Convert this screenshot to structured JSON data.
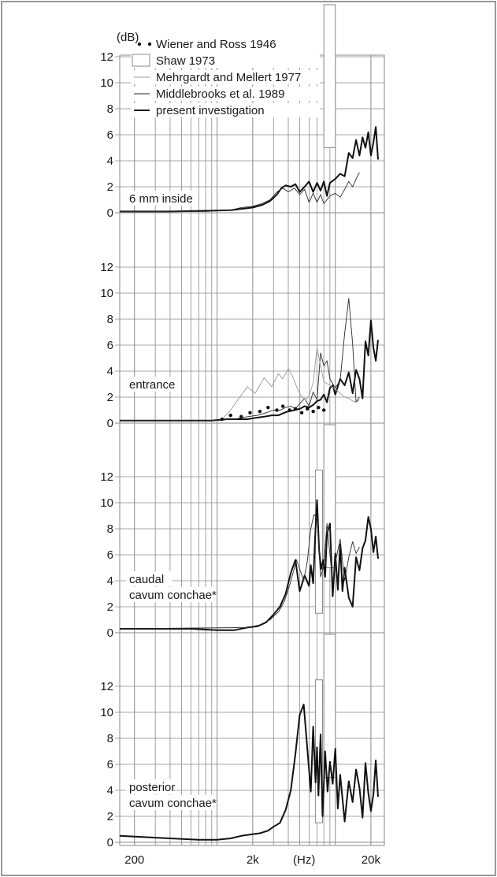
{
  "colors": {
    "background": "#ffffff",
    "frame": "#555555",
    "grid": "#8a8a8a",
    "present": "#111111",
    "middlebrooks": "#2a2a2a",
    "mehrgardt": "#9a9a9a",
    "wiener": "#111111",
    "shaw": "#8a8a8a"
  },
  "chart_data": {
    "type": "line",
    "x_scale": "log",
    "xlim": [
      150,
      26000
    ],
    "x_ticks": [
      {
        "value": 200,
        "label": "200"
      },
      {
        "value": 2000,
        "label": "2k"
      },
      {
        "value": 20000,
        "label": "20k"
      }
    ],
    "xlabel": "(Hz)",
    "ylabel": "(dB)",
    "y_ticks": [
      0,
      2,
      4,
      6,
      8,
      10,
      12
    ],
    "legend": [
      {
        "key": "wiener",
        "label": "Wiener and Ross 1946",
        "marker": "dots"
      },
      {
        "key": "shaw",
        "label": "Shaw 1973",
        "marker": "box"
      },
      {
        "key": "mehrgardt",
        "label": "Mehrgardt and Mellert 1977",
        "marker": "thin-light-line"
      },
      {
        "key": "middlebrooks",
        "label": "Middlebrooks et al. 1989",
        "marker": "thin-line"
      },
      {
        "key": "present",
        "label": "present investigation",
        "marker": "thick-line"
      }
    ],
    "panels": [
      {
        "label": "6 mm inside",
        "ylim": [
          0,
          12
        ],
        "series": [
          {
            "key": "present",
            "x": [
              150,
              400,
              800,
              1300,
              1600,
              2000,
              2400,
              2800,
              3200,
              3500,
              3800,
              4200,
              4600,
              5000,
              5500,
              6000,
              6500,
              7000,
              7500,
              8000,
              8500,
              9000,
              10000,
              11000,
              12000,
              13000,
              14000,
              15000,
              16000,
              17000,
              18000,
              19000,
              20000,
              21000,
              22000,
              23000
            ],
            "y": [
              0.1,
              0.1,
              0.15,
              0.2,
              0.3,
              0.4,
              0.6,
              0.9,
              1.4,
              1.9,
              2.1,
              2.0,
              2.2,
              1.6,
              2.0,
              2.4,
              1.6,
              2.3,
              1.7,
              2.4,
              1.3,
              2.3,
              2.6,
              3.0,
              2.8,
              4.6,
              4.2,
              5.6,
              4.4,
              5.8,
              5.0,
              6.2,
              4.4,
              5.4,
              6.6,
              4.1
            ]
          },
          {
            "key": "middlebrooks",
            "x": [
              150,
              800,
              1300,
              1600,
              2000,
              2400,
              2800,
              3200,
              3600,
              4000,
              4500,
              5000,
              5500,
              6000,
              6500,
              7000,
              7500,
              8000,
              9000,
              10000,
              11000,
              12000,
              13000,
              14000,
              15000,
              16000
            ],
            "y": [
              0.1,
              0.1,
              0.2,
              0.4,
              0.5,
              0.7,
              1.0,
              1.6,
              1.9,
              1.6,
              1.9,
              1.4,
              1.8,
              0.8,
              1.5,
              0.8,
              1.4,
              0.7,
              1.3,
              1.5,
              1.2,
              1.8,
              2.4,
              2.0,
              2.6,
              3.1
            ]
          }
        ]
      },
      {
        "label": "entrance",
        "ylim": [
          0,
          12
        ],
        "series": [
          {
            "key": "present",
            "x": [
              150,
              500,
              900,
              1200,
              1500,
              1800,
              2100,
              2500,
              2900,
              3300,
              3700,
              4000,
              4500,
              5000,
              5500,
              6000,
              6500,
              7000,
              7500,
              8000,
              8500,
              9000,
              9500,
              10000,
              11000,
              12000,
              13000,
              14000,
              15000,
              16000,
              17000,
              18000,
              19000,
              20000,
              21000,
              22000,
              23000
            ],
            "y": [
              0.2,
              0.2,
              0.2,
              0.3,
              0.3,
              0.3,
              0.4,
              0.5,
              0.6,
              0.6,
              0.8,
              0.9,
              1.0,
              1.1,
              1.3,
              1.2,
              1.4,
              1.7,
              1.8,
              2.2,
              1.6,
              2.7,
              2.9,
              2.2,
              3.4,
              2.9,
              3.9,
              2.3,
              4.1,
              3.4,
              1.9,
              6.3,
              5.2,
              7.9,
              5.8,
              4.8,
              6.4
            ]
          },
          {
            "key": "middlebrooks",
            "x": [
              150,
              900,
              1400,
              1800,
              2200,
              2600,
              3000,
              3400,
              3800,
              4200,
              4600,
              5000,
              5500,
              6000,
              6500,
              7000,
              7500,
              8000,
              8500,
              9000,
              10000,
              11000,
              12000,
              13000,
              14000,
              15000,
              16000
            ],
            "y": [
              0.2,
              0.2,
              0.3,
              0.5,
              0.6,
              0.8,
              1.0,
              1.0,
              1.2,
              1.3,
              1.1,
              1.5,
              1.9,
              1.3,
              2.4,
              1.8,
              5.4,
              4.4,
              4.8,
              3.4,
              2.7,
              3.3,
              6.9,
              9.6,
              6.1,
              1.6,
              2.0
            ]
          },
          {
            "key": "mehrgardt",
            "x": [
              1100,
              1300,
              1500,
              1800,
              2100,
              2500,
              2900,
              3300,
              3600,
              4000,
              4400,
              4800,
              5200,
              5600,
              6000,
              6500,
              7000,
              7500,
              8000,
              9000,
              10000,
              11000,
              12000,
              13000,
              14000,
              15000,
              16000
            ],
            "y": [
              0.3,
              1.0,
              1.8,
              2.8,
              2.3,
              3.5,
              2.8,
              3.8,
              3.4,
              4.2,
              3.5,
              2.6,
              2.0,
              1.8,
              2.1,
              3.1,
              5.8,
              4.4,
              3.2,
              2.9,
              2.6,
              2.3,
              2.0,
              1.9,
              1.7,
              1.6,
              1.8
            ]
          },
          {
            "key": "wiener",
            "x": [
              1100,
              1300,
              1600,
              1900,
              2300,
              2700,
              3200,
              3600,
              4100,
              4600,
              5200,
              5800,
              6500,
              7200,
              8000
            ],
            "y": [
              0.3,
              0.6,
              0.5,
              0.8,
              0.9,
              1.2,
              1.0,
              1.3,
              1.0,
              1.1,
              0.8,
              1.1,
              0.9,
              1.2,
              1.0
            ]
          }
        ]
      },
      {
        "label_lines": [
          "caudal",
          "cavum conchae*"
        ],
        "ylim": [
          0,
          12
        ],
        "series": [
          {
            "key": "present",
            "x": [
              150,
              600,
              1000,
              1400,
              1800,
              2200,
              2600,
              3000,
              3400,
              3800,
              4200,
              4600,
              5000,
              5500,
              6000,
              6200,
              6500,
              6800,
              7000,
              7300,
              7600,
              7900,
              8200,
              8500,
              9000,
              9500,
              10000,
              10500,
              11000,
              11500,
              12000,
              13000,
              14000,
              15000,
              16000,
              17000,
              18000,
              19000,
              20000,
              21000,
              22000,
              23000
            ],
            "y": [
              0.3,
              0.3,
              0.2,
              0.2,
              0.4,
              0.5,
              0.8,
              1.4,
              2.0,
              3.0,
              4.6,
              5.6,
              3.2,
              4.4,
              3.6,
              5.2,
              3.8,
              8.0,
              10.2,
              6.3,
              4.9,
              5.6,
              4.3,
              7.6,
              8.4,
              2.8,
              6.1,
              3.3,
              6.8,
              3.2,
              5.0,
              2.7,
              2.0,
              5.8,
              4.8,
              6.5,
              7.1,
              8.9,
              8.0,
              6.2,
              7.4,
              5.7
            ]
          },
          {
            "key": "middlebrooks",
            "x": [
              150,
              1800,
              2300,
              2800,
              3300,
              3700,
              4000,
              4300,
              4700,
              5000,
              5400,
              5800,
              6200,
              6600,
              7000,
              7500,
              8000,
              8500,
              9000,
              9500,
              10000,
              11000,
              12000,
              13000,
              14000,
              15000,
              16000
            ],
            "y": [
              0.3,
              0.4,
              0.6,
              1.0,
              1.6,
              2.4,
              3.3,
              4.3,
              5.6,
              4.9,
              4.0,
              5.5,
              8.0,
              9.1,
              8.8,
              4.3,
              5.2,
              8.4,
              6.0,
              3.9,
              5.4,
              7.2,
              4.0,
              5.8,
              7.0,
              6.1,
              6.6
            ]
          }
        ],
        "shaw_boxes": [
          {
            "x0": 6800,
            "x1": 7800,
            "y0": 1.5,
            "y1": 12.5
          },
          {
            "x0": 8000,
            "x1": 10000,
            "y0": 5.0,
            "y1": 16.0
          }
        ]
      },
      {
        "label_lines": [
          "posterior",
          "cavum conchae*"
        ],
        "ylim": [
          0,
          12
        ],
        "series": [
          {
            "key": "present",
            "x": [
              150,
              400,
              700,
              1000,
              1300,
              1600,
              1900,
              2300,
              2700,
              3000,
              3400,
              3800,
              4200,
              4600,
              5000,
              5400,
              5800,
              6200,
              6500,
              6800,
              7000,
              7200,
              7500,
              7800,
              8200,
              8600,
              9000,
              9500,
              10000,
              10500,
              11000,
              12000,
              13000,
              14000,
              15000,
              16000,
              17000,
              18000,
              19000,
              20000,
              21000,
              22000,
              23000
            ],
            "y": [
              0.5,
              0.3,
              0.2,
              0.2,
              0.3,
              0.5,
              0.6,
              0.7,
              0.9,
              1.2,
              1.5,
              2.5,
              4.0,
              6.8,
              9.8,
              10.6,
              7.2,
              3.9,
              8.9,
              4.6,
              7.3,
              3.6,
              8.3,
              2.0,
              7.0,
              3.9,
              6.2,
              4.5,
              7.2,
              2.6,
              5.2,
              1.6,
              4.7,
              3.1,
              5.6,
              4.2,
              1.9,
              6.1,
              3.8,
              2.4,
              3.7,
              6.3,
              3.5
            ]
          }
        ],
        "shaw_boxes": [
          {
            "x0": 6800,
            "x1": 7800,
            "y0": 1.5,
            "y1": 12.5
          },
          {
            "x0": 8000,
            "x1": 10000,
            "y0": 5.0,
            "y1": 16.0
          }
        ]
      }
    ],
    "shaw_boxes": [
      {
        "panel": 0,
        "x0": 8000,
        "x1": 10000,
        "y0": 5.0,
        "y1": 16.0
      }
    ]
  }
}
